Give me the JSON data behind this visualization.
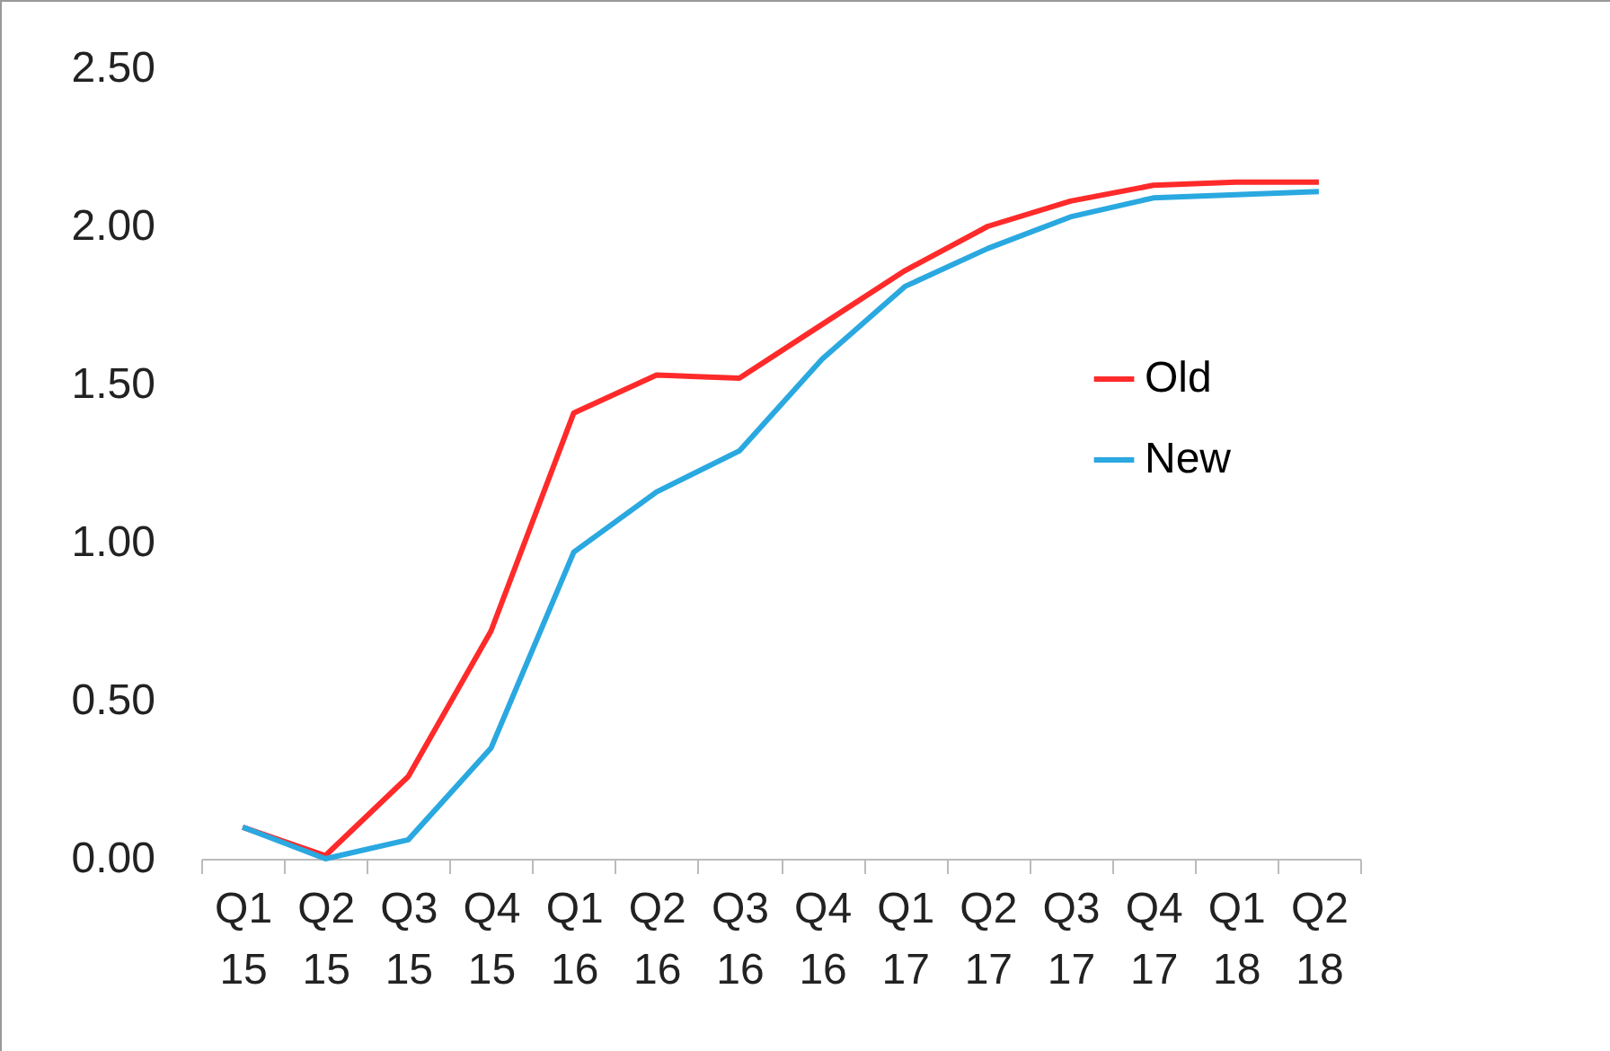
{
  "chart_data": {
    "type": "line",
    "categories": [
      "Q1 15",
      "Q2 15",
      "Q3 15",
      "Q4 15",
      "Q1 16",
      "Q2 16",
      "Q3 16",
      "Q4 16",
      "Q1 17",
      "Q2 17",
      "Q3 17",
      "Q4 17",
      "Q1 18",
      "Q2 18"
    ],
    "series": [
      {
        "name": "Old",
        "color": "#ff2a2a",
        "values": [
          0.1,
          0.01,
          0.26,
          0.72,
          1.41,
          1.53,
          1.52,
          1.69,
          1.86,
          2.0,
          2.08,
          2.13,
          2.14,
          2.14
        ]
      },
      {
        "name": "New",
        "color": "#2aa8e0",
        "values": [
          0.1,
          0.0,
          0.06,
          0.35,
          0.97,
          1.16,
          1.29,
          1.58,
          1.81,
          1.93,
          2.03,
          2.09,
          2.1,
          2.11
        ]
      }
    ],
    "ylim": [
      0,
      2.5
    ],
    "yticks": [
      {
        "value": 0,
        "label": "0.00"
      },
      {
        "value": 0.5,
        "label": "0.50"
      },
      {
        "value": 1,
        "label": "1.00"
      },
      {
        "value": 1.5,
        "label": "1.50"
      },
      {
        "value": 2,
        "label": "2.00"
      },
      {
        "value": 2.5,
        "label": "2.50"
      }
    ],
    "grid": false,
    "legend": "right",
    "marker": "none",
    "line_style": "solid"
  }
}
